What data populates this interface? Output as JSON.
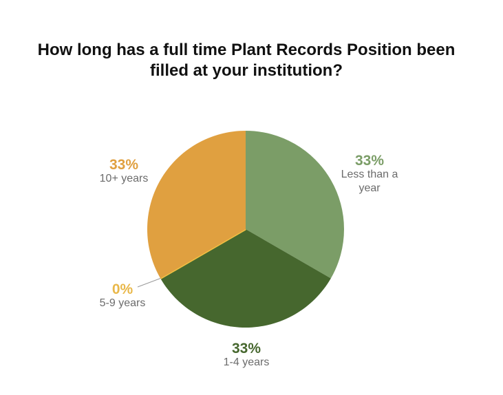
{
  "chart_data": {
    "type": "pie",
    "title": "How long has a full time Plant Records Position been filled at your institution?",
    "categories": [
      "Less than a year",
      "1-4 years",
      "5-9 years",
      "10+ years"
    ],
    "values": [
      33,
      33,
      0,
      33
    ],
    "value_labels": [
      "33%",
      "33%",
      "0%",
      "33%"
    ],
    "colors": [
      "#7b9d67",
      "#46672e",
      "#f2c143",
      "#e0a040"
    ]
  }
}
